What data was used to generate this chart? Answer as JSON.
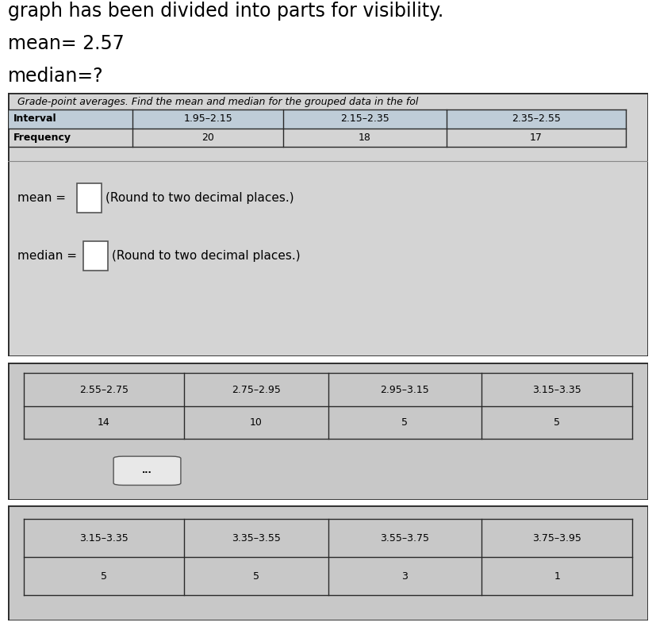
{
  "header_text_line1": "graph has been divided into parts for visibility.",
  "header_text_line2": "mean= 2.57",
  "header_text_line3": "median=?",
  "table1_title": "Grade-point averages. Find the mean and median for the grouped data in the fol",
  "table1_col_headers": [
    "Interval",
    "1.95–2.15",
    "2.15–2.35",
    "2.35–2.55"
  ],
  "table1_row2": [
    "Frequency",
    "20",
    "18",
    "17"
  ],
  "mean_label": "mean =",
  "mean_suffix": "(Round to two decimal places.)",
  "median_label": "median =",
  "median_suffix": "(Round to two decimal places.)",
  "table2_col_headers": [
    "2.55–2.75",
    "2.75–2.95",
    "2.95–3.15",
    "3.15–3.35"
  ],
  "table2_row2": [
    "14",
    "10",
    "5",
    "5"
  ],
  "table3_col_headers": [
    "3.15–3.35",
    "3.35–3.55",
    "3.55–3.75",
    "3.75–3.95"
  ],
  "table3_row2": [
    "5",
    "5",
    "3",
    "1"
  ],
  "bg_white": "#ffffff",
  "bg_light_gray": "#d4d4d4",
  "bg_medium_gray": "#c8c8c8",
  "border_dark": "#2a2a2a",
  "border_light": "#555555",
  "table_header_bg": "#c0c8d0",
  "header_font_size": 17,
  "table_title_font_size": 9,
  "table_font_size": 9,
  "label_font_size": 11
}
